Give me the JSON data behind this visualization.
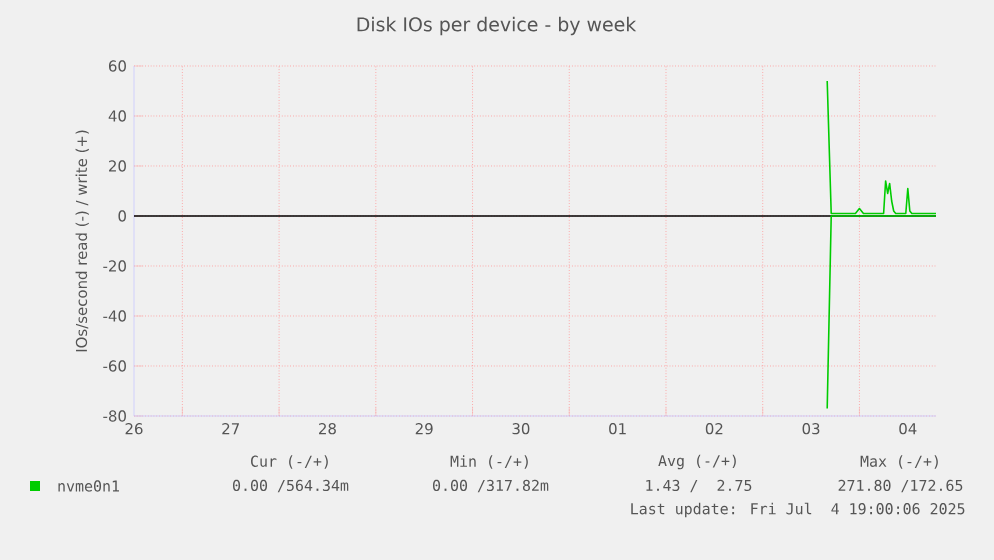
{
  "chart_data": {
    "type": "line",
    "title": "Disk IOs per device - by week",
    "ylabel": "IOs/second read (-) / write (+)",
    "xlim": [
      "2025-06-26T12:00",
      "2025-07-04T19:00"
    ],
    "xticks": [
      {
        "value": "2025-06-26T12:00",
        "label": "26"
      },
      {
        "value": "2025-06-27T12:00",
        "label": "27"
      },
      {
        "value": "2025-06-28T12:00",
        "label": "28"
      },
      {
        "value": "2025-06-29T12:00",
        "label": "29"
      },
      {
        "value": "2025-06-30T12:00",
        "label": "30"
      },
      {
        "value": "2025-07-01T12:00",
        "label": "01"
      },
      {
        "value": "2025-07-02T12:00",
        "label": "02"
      },
      {
        "value": "2025-07-03T12:00",
        "label": "03"
      },
      {
        "value": "2025-07-04T12:00",
        "label": "04"
      },
      {
        "value": "2025-06-27",
        "label": null
      },
      {
        "value": "2025-06-28",
        "label": null
      },
      {
        "value": "2025-06-29",
        "label": null
      },
      {
        "value": "2025-06-30",
        "label": null
      },
      {
        "value": "2025-07-01",
        "label": null
      },
      {
        "value": "2025-07-02",
        "label": null
      },
      {
        "value": "2025-07-03",
        "label": null
      },
      {
        "value": "2025-07-04",
        "label": null
      }
    ],
    "ylim": [
      -80,
      60
    ],
    "yticks": [
      -80,
      -60,
      -40,
      -20,
      0,
      20,
      40,
      60
    ],
    "grid": true,
    "legend": "bottom left",
    "ref_lines": [
      {
        "axis": "y",
        "value": 0,
        "color": "#000000"
      }
    ],
    "series": [
      {
        "name": "nvme0n1",
        "color": "#00cc00",
        "x": [
          "2025-07-03T16:00",
          "2025-07-03T17:00",
          "2025-07-03T23:00",
          "2025-07-04T00:00",
          "2025-07-04T01:00",
          "2025-07-04T06:00",
          "2025-07-04T06:30",
          "2025-07-04T07:00",
          "2025-07-04T07:30",
          "2025-07-04T08:00",
          "2025-07-04T08:30",
          "2025-07-04T09:00",
          "2025-07-04T11:30",
          "2025-07-04T12:00",
          "2025-07-04T12:30",
          "2025-07-04T13:00",
          "2025-07-04T19:00"
        ],
        "values": [
          54,
          1,
          1,
          3,
          1,
          1,
          14,
          9,
          13,
          6,
          2,
          1,
          1,
          11,
          2,
          1,
          1
        ]
      },
      {
        "color": "#00cc00",
        "x": [
          "2025-07-03T16:00",
          "2025-07-03T17:00",
          "2025-07-04T19:00"
        ],
        "values": [
          -77,
          0,
          0
        ]
      }
    ],
    "annotations": [
      "Cur (-/+)",
      "Min (-/+)",
      "Avg (-/+)",
      "Max (-/+)",
      "0.00 /564.34m",
      "0.00 /317.82m",
      "1.43 /  2.75",
      "271.80 /172.65",
      "Last update: Fri Jul  4 19:00:06 2025"
    ]
  }
}
